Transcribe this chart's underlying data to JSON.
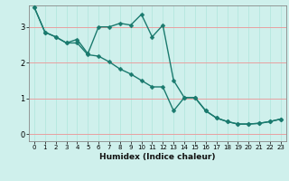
{
  "xlabel": "Humidex (Indice chaleur)",
  "background_color": "#cff0ec",
  "grid_color_h": "#e8a0a0",
  "grid_color_v": "#b8e8e0",
  "line_color": "#1a7a6e",
  "xlim": [
    -0.5,
    23.5
  ],
  "ylim": [
    -0.2,
    3.6
  ],
  "yticks": [
    0,
    1,
    2,
    3
  ],
  "xtick_labels": [
    "0",
    "1",
    "2",
    "3",
    "4",
    "5",
    "6",
    "7",
    "8",
    "9",
    "10",
    "11",
    "12",
    "13",
    "14",
    "15",
    "16",
    "17",
    "18",
    "19",
    "20",
    "21",
    "22",
    "23"
  ],
  "line1_x": [
    0,
    1,
    2,
    3,
    4,
    5,
    6,
    7,
    8,
    9,
    10,
    11,
    12,
    13,
    14,
    15,
    16,
    17,
    18,
    19,
    20,
    21,
    22,
    23
  ],
  "line1_y": [
    3.55,
    2.85,
    2.72,
    2.55,
    2.65,
    2.25,
    3.0,
    3.0,
    3.1,
    3.05,
    3.35,
    2.72,
    3.05,
    1.5,
    1.02,
    1.02,
    0.65,
    0.45,
    0.35,
    0.28,
    0.28,
    0.3,
    0.35,
    0.42
  ],
  "line2_x": [
    0,
    1,
    2,
    3,
    4,
    5,
    6,
    7,
    8,
    9,
    10,
    11,
    12,
    13,
    14,
    15,
    16,
    17,
    18,
    19,
    20,
    21,
    22,
    23
  ],
  "line2_y": [
    3.55,
    2.85,
    2.72,
    2.55,
    2.55,
    2.22,
    2.18,
    2.02,
    1.82,
    1.68,
    1.5,
    1.32,
    1.32,
    0.65,
    1.02,
    1.02,
    0.65,
    0.45,
    0.35,
    0.28,
    0.28,
    0.3,
    0.35,
    0.42
  ],
  "xlabel_fontsize": 6.5,
  "tick_fontsize": 5.0,
  "ytick_fontsize": 6.0,
  "linewidth": 1.0,
  "markersize": 2.5
}
